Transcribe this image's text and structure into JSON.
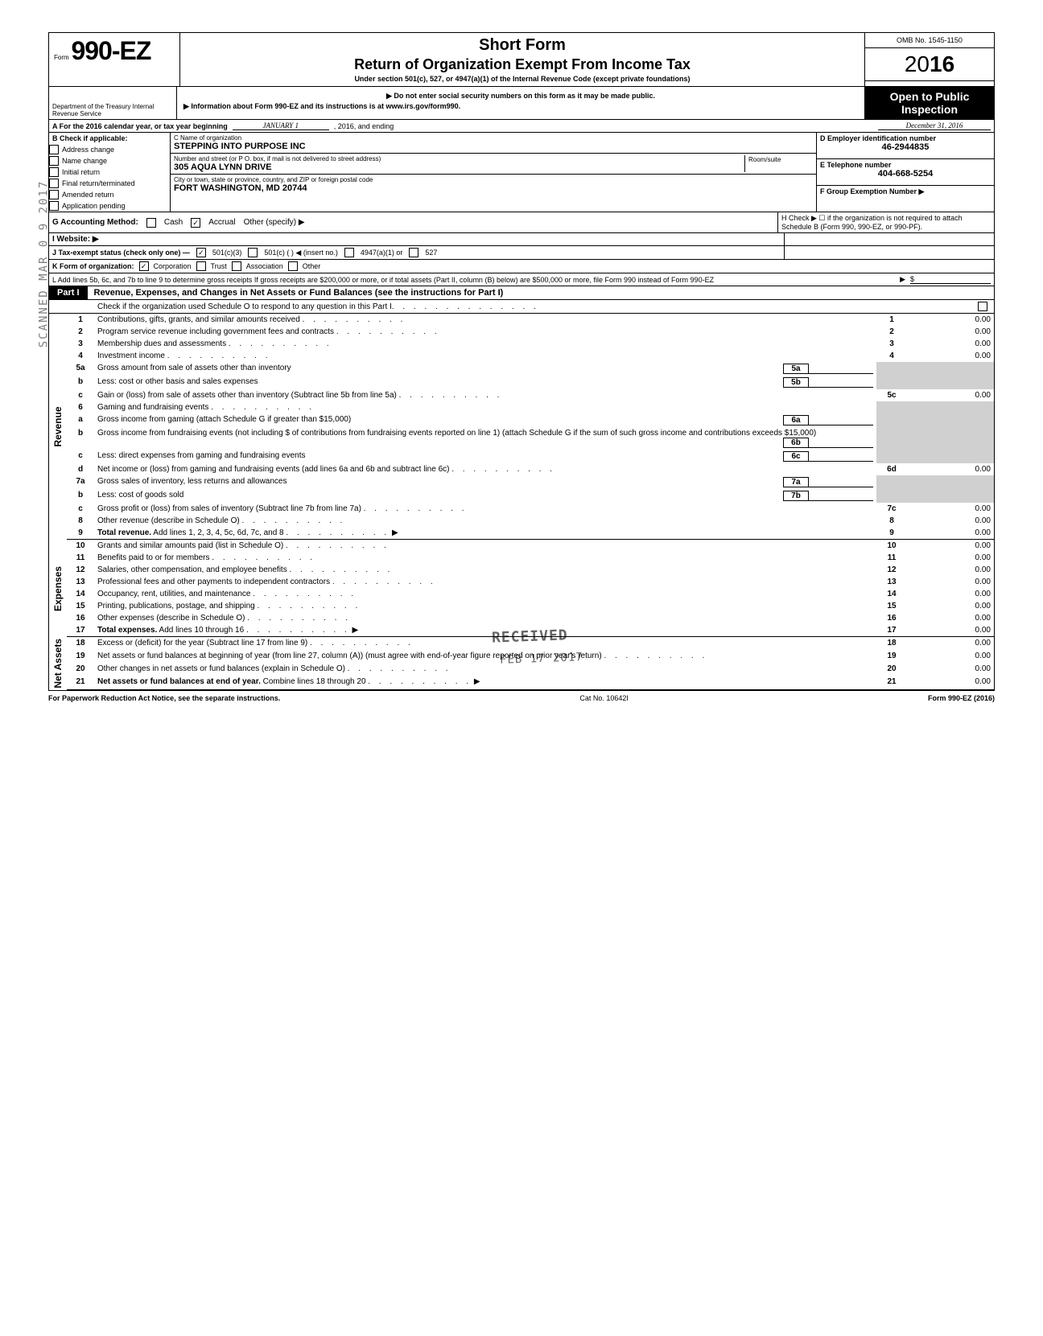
{
  "meta": {
    "omb": "OMB No. 1545-1150",
    "form_number": "990-EZ",
    "form_prefix": "Form",
    "year_display": "2016",
    "short_form": "Short Form",
    "return_title": "Return of Organization Exempt From Income Tax",
    "under_section": "Under section 501(c), 527, or 4947(a)(1) of the Internal Revenue Code (except private foundations)",
    "ssn_warning": "▶ Do not enter social security numbers on this form as it may be made public.",
    "info_link": "▶ Information about Form 990-EZ and its instructions is at www.irs.gov/form990.",
    "open_public": "Open to Public Inspection",
    "dept": "Department of the Treasury\nInternal Revenue Service"
  },
  "period": {
    "a_label": "A  For the 2016 calendar year, or tax year beginning",
    "begin": "JANUARY 1",
    "mid": ", 2016, and ending",
    "end": "December 31, 2016"
  },
  "section_b": {
    "heading": "B  Check if applicable:",
    "items": [
      "Address change",
      "Name change",
      "Initial return",
      "Final return/terminated",
      "Amended return",
      "Application pending"
    ]
  },
  "section_c": {
    "name_label": "C  Name of organization",
    "name": "STEPPING INTO PURPOSE INC",
    "street_label": "Number and street (or P O. box, if mail is not delivered to street address)",
    "room_label": "Room/suite",
    "street": "305 AQUA LYNN DRIVE",
    "city_label": "City or town, state or province, country, and ZIP or foreign postal code",
    "city": "FORT WASHINGTON, MD  20744"
  },
  "section_d": {
    "label": "D Employer identification number",
    "ein": "46-2944835"
  },
  "section_e": {
    "label": "E Telephone number",
    "phone": "404-668-5254"
  },
  "section_f": {
    "label": "F Group Exemption Number ▶"
  },
  "section_g": {
    "label": "G  Accounting Method:",
    "cash": "Cash",
    "accrual": "Accrual",
    "other": "Other (specify) ▶"
  },
  "section_h": {
    "text": "H  Check ▶ ☐ if the organization is not required to attach Schedule B (Form 990, 990-EZ, or 990-PF)."
  },
  "section_i": {
    "label": "I   Website: ▶"
  },
  "section_j": {
    "label": "J  Tax-exempt status (check only one) —",
    "opt1": "501(c)(3)",
    "opt2": "501(c) (        ) ◀ (insert no.)",
    "opt3": "4947(a)(1) or",
    "opt4": "527"
  },
  "section_k": {
    "label": "K  Form of organization:",
    "corp": "Corporation",
    "trust": "Trust",
    "assoc": "Association",
    "other": "Other"
  },
  "section_l": {
    "text": "L  Add lines 5b, 6c, and 7b to line 9 to determine gross receipts  If gross receipts are $200,000 or more, or if total assets (Part II, column (B) below) are $500,000 or more, file Form 990 instead of Form 990-EZ",
    "arrow": "▶",
    "amount": "$"
  },
  "part1": {
    "label": "Part I",
    "title": "Revenue, Expenses, and Changes in Net Assets or Fund Balances (see the instructions for Part I)",
    "check_o": "Check if the organization used Schedule O to respond to any question in this Part I"
  },
  "sections": {
    "revenue": "Revenue",
    "expenses": "Expenses",
    "netassets": "Net Assets"
  },
  "lines": [
    {
      "n": "1",
      "d": "Contributions, gifts, grants, and similar amounts received",
      "box": "1",
      "amt": "0.00"
    },
    {
      "n": "2",
      "d": "Program service revenue including government fees and contracts",
      "box": "2",
      "amt": "0.00"
    },
    {
      "n": "3",
      "d": "Membership dues and assessments",
      "box": "3",
      "amt": "0.00"
    },
    {
      "n": "4",
      "d": "Investment income",
      "box": "4",
      "amt": "0.00"
    },
    {
      "n": "5a",
      "d": "Gross amount from sale of assets other than inventory",
      "sub": "5a"
    },
    {
      "n": "b",
      "d": "Less: cost or other basis and sales expenses",
      "sub": "5b"
    },
    {
      "n": "c",
      "d": "Gain or (loss) from sale of assets other than inventory (Subtract line 5b from line 5a)",
      "box": "5c",
      "amt": "0.00"
    },
    {
      "n": "6",
      "d": "Gaming and fundraising events"
    },
    {
      "n": "a",
      "d": "Gross income from gaming (attach Schedule G if greater than $15,000)",
      "sub": "6a"
    },
    {
      "n": "b",
      "d": "Gross income from fundraising events (not including  $                    of contributions from fundraising events reported on line 1) (attach Schedule G if the sum of such gross income and contributions exceeds $15,000)",
      "sub": "6b"
    },
    {
      "n": "c",
      "d": "Less: direct expenses from gaming and fundraising events",
      "sub": "6c"
    },
    {
      "n": "d",
      "d": "Net income or (loss) from gaming and fundraising events (add lines 6a and 6b and subtract line 6c)",
      "box": "6d",
      "amt": "0.00"
    },
    {
      "n": "7a",
      "d": "Gross sales of inventory, less returns and allowances",
      "sub": "7a"
    },
    {
      "n": "b",
      "d": "Less: cost of goods sold",
      "sub": "7b"
    },
    {
      "n": "c",
      "d": "Gross profit or (loss) from sales of inventory (Subtract line 7b from line 7a)",
      "box": "7c",
      "amt": "0.00"
    },
    {
      "n": "8",
      "d": "Other revenue (describe in Schedule O)",
      "box": "8",
      "amt": "0.00"
    },
    {
      "n": "9",
      "d": "Total revenue. Add lines 1, 2, 3, 4, 5c, 6d, 7c, and 8",
      "box": "9",
      "amt": "0.00",
      "arrow": true,
      "bold": true
    },
    {
      "n": "10",
      "d": "Grants and similar amounts paid (list in Schedule O)",
      "box": "10",
      "amt": "0.00"
    },
    {
      "n": "11",
      "d": "Benefits paid to or for members",
      "box": "11",
      "amt": "0.00"
    },
    {
      "n": "12",
      "d": "Salaries, other compensation, and employee benefits",
      "box": "12",
      "amt": "0.00"
    },
    {
      "n": "13",
      "d": "Professional fees and other payments to independent contractors",
      "box": "13",
      "amt": "0.00"
    },
    {
      "n": "14",
      "d": "Occupancy, rent, utilities, and maintenance",
      "box": "14",
      "amt": "0.00"
    },
    {
      "n": "15",
      "d": "Printing, publications, postage, and shipping",
      "box": "15",
      "amt": "0.00"
    },
    {
      "n": "16",
      "d": "Other expenses (describe in Schedule O)",
      "box": "16",
      "amt": "0.00"
    },
    {
      "n": "17",
      "d": "Total expenses. Add lines 10 through 16",
      "box": "17",
      "amt": "0.00",
      "arrow": true,
      "bold": true
    },
    {
      "n": "18",
      "d": "Excess or (deficit) for the year (Subtract line 17 from line 9)",
      "box": "18",
      "amt": "0.00"
    },
    {
      "n": "19",
      "d": "Net assets or fund balances at beginning of year (from line 27, column (A)) (must agree with end-of-year figure reported on prior year's return)",
      "box": "19",
      "amt": "0.00"
    },
    {
      "n": "20",
      "d": "Other changes in net assets or fund balances (explain in Schedule O)",
      "box": "20",
      "amt": "0.00"
    },
    {
      "n": "21",
      "d": "Net assets or fund balances at end of year. Combine lines 18 through 20",
      "box": "21",
      "amt": "0.00",
      "arrow": true,
      "bold": true
    }
  ],
  "footer": {
    "left": "For Paperwork Reduction Act Notice, see the separate instructions.",
    "mid": "Cat  No. 10642I",
    "right": "Form 990-EZ (2016)"
  },
  "stamps": {
    "side": "SCANNED MAR 0 9 2017",
    "received": "RECEIVED",
    "date": "FEB 17 2017"
  },
  "colors": {
    "black": "#000000",
    "white": "#ffffff",
    "shade": "#d0d0d0"
  }
}
